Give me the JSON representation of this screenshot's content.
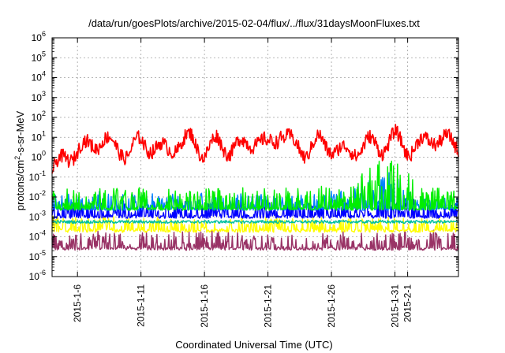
{
  "chart_data": {
    "type": "line",
    "title": "/data/run/goesPlots/archive/2015-02-04/flux/../flux/31daysMoonFluxes.txt",
    "xlabel": "Coordinated Universal Time (UTC)",
    "ylabel_base": "protons/cm",
    "ylabel_sup": "2",
    "ylabel_rest": "-s-sr-MeV",
    "yscale": "log",
    "ylim_exp": [
      -6,
      6
    ],
    "xlim": [
      "2015-01-04",
      "2015-02-05"
    ],
    "grid": true,
    "ytick_base": "10",
    "yticks": [
      {
        "base": "10",
        "exp": "-6",
        "value": -6
      },
      {
        "base": "10",
        "exp": "-5",
        "value": -5
      },
      {
        "base": "10",
        "exp": "-4",
        "value": -4
      },
      {
        "base": "10",
        "exp": "-3",
        "value": -3
      },
      {
        "base": "10",
        "exp": "-2",
        "value": -2
      },
      {
        "base": "10",
        "exp": "-1",
        "value": -1
      },
      {
        "base": "10",
        "exp": "0",
        "value": 0
      },
      {
        "base": "10",
        "exp": "1",
        "value": 1
      },
      {
        "base": "10",
        "exp": "2",
        "value": 2
      },
      {
        "base": "10",
        "exp": "3",
        "value": 3
      },
      {
        "base": "10",
        "exp": "4",
        "value": 4
      },
      {
        "base": "10",
        "exp": "5",
        "value": 5
      },
      {
        "base": "10",
        "exp": "6",
        "value": 6
      }
    ],
    "xticks": [
      {
        "label": "2015-1-6",
        "date": "2015-01-06"
      },
      {
        "label": "2015-1-11",
        "date": "2015-01-11"
      },
      {
        "label": "2015-1-16",
        "date": "2015-01-16"
      },
      {
        "label": "2015-1-21",
        "date": "2015-01-21"
      },
      {
        "label": "2015-1-26",
        "date": "2015-01-26"
      },
      {
        "label": "2015-1-31",
        "date": "2015-01-31"
      },
      {
        "label": "2015-2-1",
        "date": "2015-02-01"
      }
    ],
    "series": [
      {
        "color": "#ff0000",
        "baseline_log": 0.4,
        "x": [
          "2015-01-04",
          "2015-01-05",
          "2015-01-06",
          "2015-01-07",
          "2015-01-08",
          "2015-01-09",
          "2015-01-10",
          "2015-01-11",
          "2015-01-12",
          "2015-01-13",
          "2015-01-14",
          "2015-01-15",
          "2015-01-16",
          "2015-01-17",
          "2015-01-18",
          "2015-01-19",
          "2015-01-20",
          "2015-01-21",
          "2015-01-22",
          "2015-01-23",
          "2015-01-24",
          "2015-01-25",
          "2015-01-26",
          "2015-01-27",
          "2015-01-28",
          "2015-01-29",
          "2015-01-30",
          "2015-01-31",
          "2015-02-01",
          "2015-02-02",
          "2015-02-03",
          "2015-02-04",
          "2015-02-05"
        ],
        "y_log": [
          -0.8,
          0.0,
          0.3,
          0.6,
          0.9,
          0.5,
          0.2,
          0.8,
          0.5,
          0.3,
          0.7,
          0.9,
          0.2,
          0.8,
          0.4,
          0.6,
          0.9,
          0.5,
          1.3,
          0.6,
          0.3,
          0.8,
          0.5,
          0.2,
          0.4,
          0.7,
          0.5,
          1.0,
          0.4,
          0.6,
          1.0,
          0.8,
          0.6
        ]
      },
      {
        "color": "#00ee00",
        "baseline_log": -2.6,
        "x": [
          "2015-01-04",
          "2015-01-08",
          "2015-01-12",
          "2015-01-16",
          "2015-01-20",
          "2015-01-24",
          "2015-01-27",
          "2015-01-28",
          "2015-01-29",
          "2015-01-30",
          "2015-01-31",
          "2015-02-01",
          "2015-02-02",
          "2015-02-05"
        ],
        "y_log": [
          -2.0,
          -1.8,
          -1.9,
          -1.8,
          -1.8,
          -1.9,
          -1.7,
          -1.2,
          -0.6,
          -0.4,
          -0.4,
          -1.0,
          -1.7,
          -1.9
        ]
      },
      {
        "color": "#0080ff",
        "baseline_log": -2.6,
        "x": [
          "2015-01-04",
          "2015-01-08",
          "2015-01-12",
          "2015-01-16",
          "2015-01-20",
          "2015-01-24",
          "2015-01-27",
          "2015-01-28",
          "2015-01-29",
          "2015-01-30",
          "2015-01-31",
          "2015-02-01",
          "2015-02-02",
          "2015-02-05"
        ],
        "y_log": [
          -2.2,
          -2.1,
          -2.2,
          -2.1,
          -2.2,
          -2.2,
          -2.0,
          -1.7,
          -1.3,
          -1.0,
          -1.2,
          -1.9,
          -2.3,
          -2.4
        ]
      },
      {
        "color": "#0000ff",
        "baseline_log": -3.0,
        "x": [
          "2015-01-04",
          "2015-01-10",
          "2015-01-16",
          "2015-01-22",
          "2015-01-28",
          "2015-01-31",
          "2015-02-05"
        ],
        "y_log": [
          -2.6,
          -2.5,
          -2.6,
          -2.5,
          -2.5,
          -2.4,
          -2.6
        ]
      },
      {
        "color": "#00c0a0",
        "baseline_log": -3.25,
        "x": [
          "2015-01-04",
          "2015-02-05"
        ],
        "y_log": [
          -3.25,
          -3.25
        ]
      },
      {
        "color": "#ffff00",
        "baseline_log": -3.7,
        "x": [
          "2015-01-04",
          "2015-01-16",
          "2015-01-28",
          "2015-02-05"
        ],
        "y_log": [
          -3.3,
          -3.4,
          -3.3,
          -3.4
        ]
      },
      {
        "color": "#993366",
        "baseline_log": -4.6,
        "x": [
          "2015-01-04",
          "2015-01-16",
          "2015-01-28",
          "2015-02-05"
        ],
        "y_log": [
          -4.1,
          -4.0,
          -4.1,
          -4.0
        ]
      }
    ]
  }
}
